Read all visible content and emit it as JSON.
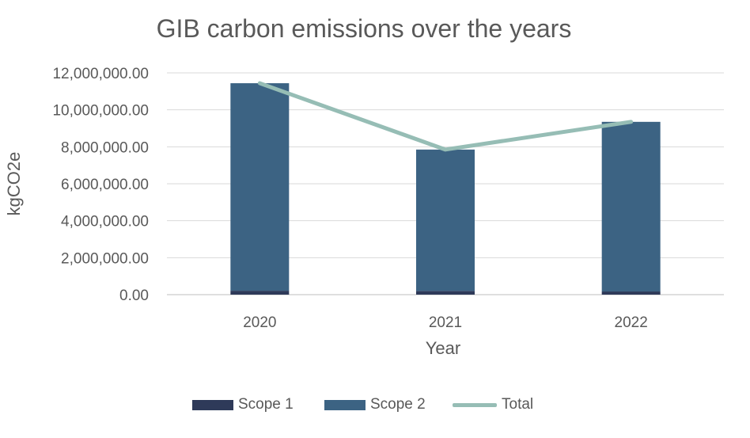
{
  "chart_data": {
    "type": "bar",
    "title": "GIB carbon emissions over the years",
    "xlabel": "Year",
    "ylabel": "kgCO2e",
    "categories": [
      "2020",
      "2021",
      "2022"
    ],
    "ylim": [
      0,
      12000000
    ],
    "yticks": [
      "0.00",
      "2,000,000.00",
      "4,000,000.00",
      "6,000,000.00",
      "8,000,000.00",
      "10,000,000.00",
      "12,000,000.00"
    ],
    "stacked": true,
    "series": [
      {
        "name": "Scope 1",
        "type": "bar",
        "color": "#2E3A59",
        "values": [
          210000,
          200000,
          170000
        ]
      },
      {
        "name": "Scope 2",
        "type": "bar",
        "color": "#3C6383",
        "values": [
          11230000,
          7650000,
          9180000
        ]
      },
      {
        "name": "Total",
        "type": "line",
        "color": "#96BDB5",
        "values": [
          11440000,
          7850000,
          9350000
        ]
      }
    ],
    "grid": true,
    "legend_position": "bottom"
  }
}
